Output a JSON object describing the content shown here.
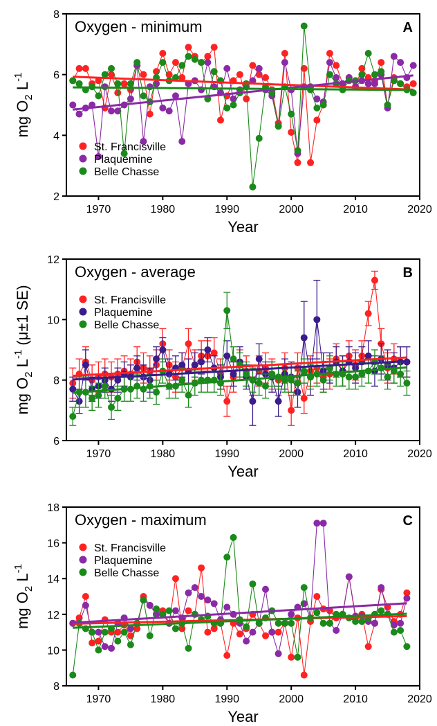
{
  "chart_data": [
    {
      "type": "line",
      "panel_letter": "A",
      "title": "Oxygen - minimum",
      "xlabel": "Year",
      "ylabel": "mg O2 L-1",
      "xlim": [
        1965,
        2020
      ],
      "ylim": [
        2,
        8
      ],
      "xticks": [
        1970,
        1980,
        1990,
        2000,
        2010,
        2020
      ],
      "yticks": [
        2,
        4,
        6,
        8
      ],
      "legend_position": "bottom-left",
      "trend_lines": true,
      "error_bars": false,
      "x": [
        1966,
        1967,
        1968,
        1969,
        1970,
        1971,
        1972,
        1973,
        1974,
        1975,
        1976,
        1977,
        1978,
        1979,
        1980,
        1981,
        1982,
        1983,
        1984,
        1985,
        1986,
        1987,
        1988,
        1989,
        1990,
        1991,
        1992,
        1993,
        1994,
        1995,
        1996,
        1997,
        1998,
        1999,
        2000,
        2001,
        2002,
        2003,
        2004,
        2005,
        2006,
        2007,
        2008,
        2009,
        2010,
        2011,
        2012,
        2013,
        2014,
        2015,
        2016,
        2017,
        2018,
        2019
      ],
      "series": [
        {
          "name": "St. Francisville",
          "color": "#ff2222",
          "values": [
            5.8,
            6.2,
            6.2,
            5.7,
            5.8,
            4.9,
            6.0,
            5.4,
            5.7,
            5.5,
            6.3,
            6.0,
            4.7,
            6.1,
            6.7,
            6.0,
            6.4,
            5.9,
            6.9,
            6.6,
            6.4,
            6.6,
            6.9,
            4.5,
            5.3,
            5.8,
            6.0,
            5.2,
            6.3,
            6.0,
            5.9,
            5.5,
            4.4,
            6.7,
            4.1,
            3.1,
            6.2,
            3.1,
            4.5,
            5.0,
            6.7,
            6.3,
            5.7,
            5.9,
            5.6,
            6.2,
            5.9,
            5.8,
            6.4,
            5.0,
            5.9,
            5.7,
            5.6,
            5.7
          ]
        },
        {
          "name": "Plaquemine",
          "color": "#8a2aa6",
          "values": [
            5.0,
            4.7,
            4.9,
            5.0,
            3.3,
            5.6,
            4.8,
            4.8,
            5.0,
            5.2,
            6.3,
            3.8,
            5.6,
            5.7,
            4.9,
            4.8,
            5.3,
            3.8,
            5.7,
            5.8,
            5.5,
            6.4,
            5.6,
            5.4,
            6.2,
            5.2,
            5.5,
            5.6,
            5.8,
            6.2,
            5.5,
            5.3,
            4.3,
            6.4,
            5.5,
            3.4,
            5.6,
            5.6,
            5.2,
            5.1,
            6.4,
            5.9,
            5.7,
            5.9,
            5.6,
            5.8,
            5.7,
            5.7,
            6.0,
            4.9,
            6.6,
            6.4,
            5.9,
            6.3
          ]
        },
        {
          "name": "Belle Chasse",
          "color": "#1a8a1a",
          "values": [
            5.8,
            5.7,
            5.5,
            5.6,
            5.3,
            6.0,
            6.2,
            5.7,
            3.4,
            5.7,
            6.4,
            5.3,
            5.1,
            5.9,
            6.4,
            5.8,
            5.9,
            6.3,
            6.6,
            6.5,
            6.4,
            5.2,
            6.1,
            5.8,
            4.9,
            5.0,
            5.4,
            5.7,
            2.3,
            3.9,
            5.6,
            5.4,
            4.3,
            5.6,
            4.7,
            3.5,
            7.6,
            5.5,
            4.9,
            5.0,
            6.0,
            5.7,
            5.5,
            5.8,
            5.8,
            6.0,
            6.7,
            6.0,
            6.1,
            5.0,
            5.8,
            5.7,
            5.5,
            5.4
          ]
        }
      ]
    },
    {
      "type": "line",
      "panel_letter": "B",
      "title": "Oxygen - average",
      "xlabel": "Year",
      "ylabel": "mg O2 L-1 (μ±1 SE)",
      "xlim": [
        1965,
        2020
      ],
      "ylim": [
        6,
        12
      ],
      "xticks": [
        1970,
        1980,
        1990,
        2000,
        2010,
        2020
      ],
      "yticks": [
        6,
        8,
        10,
        12
      ],
      "legend_position": "top-left",
      "trend_lines": true,
      "error_bars": true,
      "x": [
        1966,
        1967,
        1968,
        1969,
        1970,
        1971,
        1972,
        1973,
        1974,
        1975,
        1976,
        1977,
        1978,
        1979,
        1980,
        1981,
        1982,
        1983,
        1984,
        1985,
        1986,
        1987,
        1988,
        1989,
        1990,
        1991,
        1992,
        1993,
        1994,
        1995,
        1996,
        1997,
        1998,
        1999,
        2000,
        2001,
        2002,
        2003,
        2004,
        2005,
        2006,
        2007,
        2008,
        2009,
        2010,
        2011,
        2012,
        2013,
        2014,
        2015,
        2016,
        2017,
        2018
      ],
      "series": [
        {
          "name": "St. Francisville",
          "color": "#ff2222",
          "values": [
            7.9,
            8.2,
            8.6,
            8.0,
            8.1,
            8.2,
            8.1,
            8.2,
            8.3,
            8.2,
            8.6,
            8.4,
            8.3,
            8.5,
            9.2,
            8.5,
            8.1,
            8.4,
            9.2,
            8.5,
            8.8,
            8.8,
            8.9,
            8.2,
            7.3,
            8.1,
            8.5,
            8.3,
            8.0,
            8.3,
            8.4,
            8.2,
            8.0,
            8.4,
            7.0,
            8.4,
            7.4,
            8.3,
            8.4,
            8.1,
            8.2,
            8.7,
            8.3,
            8.8,
            8.5,
            8.8,
            10.2,
            11.3,
            9.2,
            8.4,
            8.7,
            8.6,
            8.6
          ],
          "se": [
            0.5,
            0.5,
            0.5,
            0.5,
            0.5,
            0.5,
            0.5,
            0.5,
            0.5,
            0.5,
            0.5,
            0.5,
            0.5,
            0.5,
            0.5,
            0.5,
            0.5,
            0.5,
            0.5,
            0.5,
            0.5,
            0.5,
            0.5,
            0.5,
            0.5,
            0.5,
            0.5,
            0.5,
            0.5,
            0.5,
            0.5,
            0.5,
            0.5,
            0.5,
            0.5,
            0.5,
            0.5,
            0.5,
            0.5,
            0.5,
            0.5,
            0.5,
            0.5,
            0.5,
            0.5,
            0.5,
            0.4,
            0.3,
            0.5,
            0.5,
            0.5,
            0.5,
            0.5
          ]
        },
        {
          "name": "Plaquemine",
          "color": "#3a1c8c",
          "values": [
            7.7,
            7.3,
            8.5,
            7.7,
            7.8,
            8.0,
            7.7,
            8.0,
            8.2,
            8.1,
            8.4,
            8.1,
            8.0,
            8.7,
            9.0,
            8.2,
            8.4,
            8.5,
            8.3,
            8.5,
            8.6,
            9.0,
            8.4,
            8.1,
            8.8,
            8.2,
            8.6,
            8.1,
            7.3,
            8.7,
            8.2,
            8.1,
            7.3,
            8.2,
            8.1,
            7.6,
            9.4,
            8.1,
            10.0,
            8.3,
            8.4,
            8.6,
            8.3,
            8.6,
            8.4,
            8.6,
            8.8,
            8.3,
            8.7,
            8.5,
            8.4,
            8.6,
            8.6
          ],
          "se": [
            0.4,
            0.4,
            0.5,
            0.4,
            0.4,
            0.4,
            0.4,
            0.4,
            0.4,
            0.4,
            0.4,
            0.4,
            0.4,
            0.4,
            0.4,
            0.5,
            0.4,
            0.4,
            0.4,
            0.4,
            0.4,
            0.4,
            0.4,
            0.4,
            0.5,
            0.4,
            0.5,
            0.4,
            0.8,
            0.5,
            0.4,
            0.5,
            0.5,
            0.5,
            0.5,
            0.5,
            1.2,
            0.6,
            1.3,
            0.6,
            0.5,
            0.5,
            0.5,
            0.5,
            0.5,
            0.5,
            0.5,
            0.5,
            0.5,
            0.5,
            0.5,
            0.5,
            0.5
          ]
        },
        {
          "name": "Belle Chasse",
          "color": "#1a8a1a",
          "values": [
            6.8,
            7.6,
            7.6,
            7.4,
            7.5,
            7.8,
            7.1,
            7.4,
            7.7,
            7.7,
            7.8,
            7.7,
            7.8,
            7.6,
            8.3,
            7.8,
            7.8,
            8.0,
            7.5,
            7.9,
            8.0,
            8.0,
            8.0,
            7.9,
            10.3,
            8.7,
            8.5,
            8.2,
            8.0,
            7.9,
            7.8,
            8.2,
            8.1,
            8.0,
            8.0,
            7.9,
            8.3,
            8.1,
            8.2,
            8.0,
            8.4,
            8.2,
            8.2,
            8.1,
            8.1,
            8.2,
            8.3,
            8.6,
            8.4,
            8.1,
            8.3,
            8.2,
            7.9
          ],
          "se": [
            0.3,
            0.5,
            0.5,
            0.4,
            0.4,
            0.4,
            0.4,
            0.4,
            0.4,
            0.4,
            0.4,
            0.4,
            0.4,
            0.4,
            0.4,
            0.4,
            0.4,
            0.4,
            0.4,
            0.4,
            0.4,
            0.4,
            0.4,
            0.4,
            0.6,
            0.4,
            0.4,
            0.4,
            0.4,
            0.4,
            0.4,
            0.4,
            0.4,
            0.4,
            0.4,
            0.4,
            0.4,
            0.4,
            0.4,
            0.4,
            0.4,
            0.4,
            0.4,
            0.4,
            0.4,
            0.4,
            0.4,
            0.4,
            0.4,
            0.4,
            0.4,
            0.4,
            0.4
          ]
        }
      ]
    },
    {
      "type": "line",
      "panel_letter": "C",
      "title": "Oxygen - maximum",
      "xlabel": "Year",
      "ylabel": "mg O2 L-1",
      "xlim": [
        1965,
        2020
      ],
      "ylim": [
        8,
        18
      ],
      "xticks": [
        1970,
        1980,
        1990,
        2000,
        2010,
        2020
      ],
      "yticks": [
        8,
        10,
        12,
        14,
        16,
        18
      ],
      "legend_position": "top-left",
      "trend_lines": true,
      "error_bars": false,
      "x": [
        1966,
        1967,
        1968,
        1969,
        1970,
        1971,
        1972,
        1973,
        1974,
        1975,
        1976,
        1977,
        1978,
        1979,
        1980,
        1981,
        1982,
        1983,
        1984,
        1985,
        1986,
        1987,
        1988,
        1989,
        1990,
        1991,
        1992,
        1993,
        1994,
        1995,
        1996,
        1997,
        1998,
        1999,
        2000,
        2001,
        2002,
        2003,
        2004,
        2005,
        2006,
        2007,
        2008,
        2009,
        2010,
        2011,
        2012,
        2013,
        2014,
        2015,
        2016,
        2017,
        2018
      ],
      "series": [
        {
          "name": "St. Francisville",
          "color": "#ff2222",
          "values": [
            11.5,
            11.8,
            13.0,
            10.4,
            10.5,
            11.7,
            11.0,
            11.0,
            11.4,
            10.8,
            11.2,
            13.0,
            12.5,
            12.0,
            12.2,
            11.5,
            14.0,
            11.2,
            12.2,
            12.0,
            14.6,
            11.0,
            11.2,
            11.5,
            9.7,
            11.5,
            10.9,
            11.2,
            12.0,
            11.5,
            10.8,
            11.0,
            11.0,
            11.5,
            9.6,
            11.8,
            8.6,
            11.6,
            13.0,
            12.3,
            12.2,
            11.8,
            12.0,
            14.1,
            11.8,
            12.0,
            10.2,
            11.5,
            13.4,
            12.4,
            11.6,
            12.0,
            13.2
          ]
        },
        {
          "name": "Plaquemine",
          "color": "#8a2aa6",
          "values": [
            11.5,
            11.5,
            12.5,
            11.0,
            11.0,
            10.2,
            10.1,
            11.5,
            11.8,
            11.2,
            11.5,
            12.8,
            12.5,
            12.0,
            12.0,
            11.5,
            12.2,
            11.8,
            13.2,
            13.5,
            13.0,
            12.8,
            12.6,
            11.7,
            12.4,
            12.0,
            11.5,
            10.5,
            11.0,
            11.5,
            13.4,
            11.0,
            9.8,
            11.5,
            12.0,
            12.4,
            12.6,
            11.8,
            17.1,
            17.1,
            11.5,
            11.1,
            12.0,
            14.1,
            11.9,
            11.9,
            11.6,
            11.5,
            13.5,
            12.0,
            11.4,
            11.5,
            12.9
          ]
        },
        {
          "name": "Belle Chasse",
          "color": "#1a8a1a",
          "values": [
            8.6,
            11.5,
            11.2,
            11.0,
            10.0,
            11.0,
            11.2,
            10.5,
            11.0,
            10.3,
            11.5,
            12.8,
            10.8,
            12.3,
            12.0,
            12.2,
            11.2,
            11.5,
            10.1,
            12.0,
            11.7,
            11.9,
            11.5,
            11.5,
            15.2,
            16.3,
            11.7,
            11.3,
            13.7,
            11.5,
            11.8,
            12.2,
            11.5,
            11.5,
            11.5,
            9.6,
            13.5,
            11.8,
            12.1,
            11.5,
            11.5,
            12.0,
            12.0,
            11.8,
            11.6,
            11.6,
            11.8,
            12.0,
            12.2,
            12.0,
            11.0,
            11.1,
            10.2
          ]
        }
      ]
    }
  ]
}
